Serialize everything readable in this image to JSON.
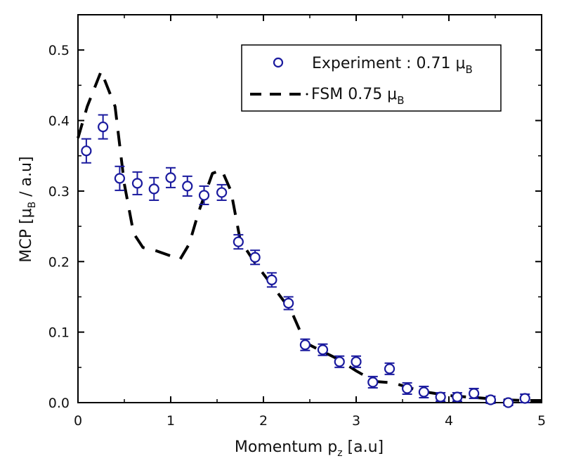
{
  "chart_data": {
    "type": "scatter",
    "title": "",
    "xlabel": "Momentum p_z [a.u]",
    "xlabel_main": "Momentum p",
    "xlabel_sub": "z",
    "xlabel_tail": " [a.u]",
    "ylabel": "MCP [μ_B / a.u]",
    "ylabel_main": "MCP [μ",
    "ylabel_sub": "B",
    "ylabel_tail": " / a.u]",
    "xlim": [
      0,
      5
    ],
    "ylim": [
      0,
      0.55
    ],
    "xticks": [
      "0",
      "1",
      "2",
      "3",
      "4",
      "5"
    ],
    "yticks": [
      "0.0",
      "0.1",
      "0.2",
      "0.3",
      "0.4",
      "0.5"
    ],
    "legend_position": "top-right",
    "grid": false,
    "series": [
      {
        "name": "Experiment : 0.71 μ_B",
        "legend_main": "Experiment : 0.71 μ",
        "legend_sub": "B",
        "kind": "scatter-errorbar",
        "color": "#1a1a9e",
        "x": [
          0.09,
          0.27,
          0.45,
          0.64,
          0.82,
          1.0,
          1.18,
          1.36,
          1.55,
          1.73,
          1.91,
          2.09,
          2.27,
          2.45,
          2.64,
          2.82,
          3.0,
          3.18,
          3.36,
          3.55,
          3.73,
          3.91,
          4.09,
          4.27,
          4.45,
          4.64,
          4.82
        ],
        "y": [
          0.357,
          0.391,
          0.318,
          0.311,
          0.303,
          0.319,
          0.307,
          0.294,
          0.298,
          0.228,
          0.206,
          0.174,
          0.141,
          0.082,
          0.075,
          0.058,
          0.058,
          0.029,
          0.048,
          0.02,
          0.015,
          0.008,
          0.008,
          0.013,
          0.004,
          0.0,
          0.006
        ],
        "err": [
          0.017,
          0.017,
          0.017,
          0.016,
          0.016,
          0.014,
          0.014,
          0.013,
          0.011,
          0.01,
          0.01,
          0.01,
          0.009,
          0.008,
          0.008,
          0.008,
          0.008,
          0.008,
          0.008,
          0.008,
          0.008,
          0.006,
          0.006,
          0.007,
          0.005,
          0.004,
          0.006
        ]
      },
      {
        "name": "FSM 0.75 μ_B",
        "legend_main": "FSM 0.75 μ",
        "legend_sub": "B",
        "kind": "dashed-line",
        "color": "#000000",
        "x": [
          0.0,
          0.1,
          0.25,
          0.4,
          0.5,
          0.6,
          0.7,
          0.85,
          1.0,
          1.1,
          1.2,
          1.3,
          1.45,
          1.55,
          1.65,
          1.75,
          1.9,
          2.1,
          2.3,
          2.45,
          2.6,
          2.8,
          3.0,
          3.2,
          3.4,
          3.6,
          3.8,
          4.0,
          4.2,
          4.4,
          4.6,
          4.8,
          5.0
        ],
        "y": [
          0.375,
          0.42,
          0.47,
          0.42,
          0.31,
          0.24,
          0.22,
          0.215,
          0.208,
          0.203,
          0.225,
          0.27,
          0.325,
          0.33,
          0.3,
          0.23,
          0.2,
          0.165,
          0.13,
          0.085,
          0.075,
          0.062,
          0.045,
          0.03,
          0.028,
          0.02,
          0.014,
          0.01,
          0.008,
          0.006,
          0.004,
          0.003,
          0.003
        ]
      }
    ]
  }
}
